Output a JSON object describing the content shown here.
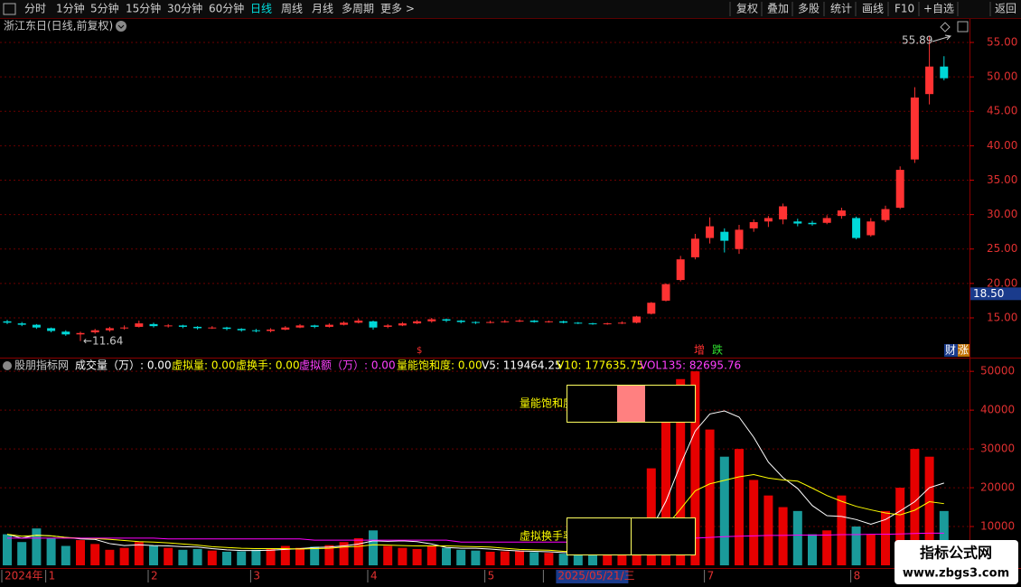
{
  "toolbar": {
    "left": [
      "分时",
      "1分钟",
      "5分钟",
      "15分钟",
      "30分钟",
      "60分钟",
      "日线",
      "周线",
      "月线",
      "多周期",
      "更多 >"
    ],
    "right": [
      "复权",
      "叠加",
      "多股",
      "统计",
      "画线",
      "F10",
      "+自选",
      "返回"
    ]
  },
  "chart_data": [
    {
      "type": "candlestick",
      "title": "浙江东日(日线,前复权)",
      "open": [
        14.5,
        14.2,
        14.0,
        13.5,
        13.0,
        12.6,
        12.9,
        13.2,
        13.5,
        13.7,
        14.1,
        13.8,
        13.9,
        13.7,
        13.5,
        13.6,
        13.4,
        13.2,
        13.1,
        13.3,
        13.6,
        13.9,
        13.7,
        14.0,
        14.3,
        14.5,
        13.7,
        13.9,
        14.2,
        14.5,
        14.8,
        14.6,
        14.4,
        14.3,
        14.4,
        14.5,
        14.6,
        14.4,
        14.5,
        14.3,
        14.2,
        14.1,
        14.2,
        14.3,
        15.6,
        17.5,
        20.5,
        23.8,
        26.6,
        27.5,
        25.0,
        28.0,
        29.0,
        29.3,
        29.0,
        28.8,
        28.8,
        29.8,
        29.5,
        27.0,
        29.2,
        31.0,
        38.0,
        47.5,
        51.5
      ],
      "high": [
        14.7,
        14.4,
        14.1,
        13.6,
        13.2,
        13.0,
        13.4,
        13.7,
        13.9,
        14.6,
        14.3,
        14.1,
        14.0,
        13.8,
        13.8,
        13.7,
        13.5,
        13.4,
        13.5,
        13.8,
        14.1,
        14.0,
        14.2,
        14.5,
        14.9,
        14.6,
        14.1,
        14.4,
        14.7,
        15.0,
        14.9,
        14.7,
        14.5,
        14.6,
        14.7,
        14.8,
        14.7,
        14.6,
        14.6,
        14.4,
        14.3,
        14.3,
        14.5,
        15.3,
        17.3,
        20.0,
        24.0,
        27.2,
        29.6,
        28.0,
        28.5,
        29.3,
        29.8,
        31.6,
        29.4,
        29.1,
        29.9,
        31.0,
        29.7,
        29.5,
        31.3,
        37.0,
        48.5,
        55.89,
        53.0
      ],
      "low": [
        14.1,
        13.8,
        13.4,
        12.9,
        12.4,
        11.64,
        12.7,
        13.0,
        13.3,
        13.6,
        13.6,
        13.6,
        13.5,
        13.3,
        13.4,
        13.2,
        13.0,
        12.9,
        12.9,
        13.2,
        13.5,
        13.5,
        13.6,
        13.9,
        14.2,
        13.3,
        13.5,
        13.8,
        14.1,
        14.3,
        14.4,
        14.2,
        14.1,
        14.2,
        14.3,
        14.4,
        14.3,
        14.3,
        14.2,
        14.1,
        14.0,
        14.0,
        14.1,
        14.2,
        15.5,
        17.4,
        20.3,
        23.5,
        25.8,
        24.5,
        24.3,
        27.5,
        28.2,
        28.6,
        28.3,
        28.4,
        28.6,
        29.4,
        26.4,
        26.8,
        28.9,
        30.8,
        37.5,
        46.0,
        49.5
      ],
      "close": [
        14.3,
        14.0,
        13.6,
        13.1,
        12.6,
        12.8,
        13.2,
        13.5,
        13.6,
        14.2,
        13.8,
        13.9,
        13.7,
        13.5,
        13.6,
        13.4,
        13.2,
        13.1,
        13.3,
        13.6,
        13.9,
        13.7,
        14.0,
        14.3,
        14.6,
        13.6,
        13.9,
        14.2,
        14.5,
        14.8,
        14.6,
        14.4,
        14.3,
        14.4,
        14.5,
        14.6,
        14.4,
        14.5,
        14.3,
        14.2,
        14.1,
        14.2,
        14.3,
        15.2,
        17.2,
        19.9,
        23.5,
        26.5,
        28.3,
        26.2,
        27.8,
        28.9,
        29.5,
        31.2,
        28.7,
        28.6,
        29.5,
        30.6,
        26.6,
        29.0,
        30.8,
        36.5,
        47.0,
        51.5,
        49.8
      ],
      "up_color": "#ff3232",
      "down_color": "#00d8d8",
      "ylim": [
        9.36,
        56.18
      ],
      "yticks": [
        {
          "value": 15,
          "label": "15.00"
        },
        {
          "value": 20,
          "label": "20.00"
        },
        {
          "value": 25,
          "label": "25.00"
        },
        {
          "value": 30,
          "label": "30.00"
        },
        {
          "value": 35,
          "label": "35.00"
        },
        {
          "value": 40,
          "label": "40.00"
        },
        {
          "value": 45,
          "label": "45.00"
        },
        {
          "value": 50,
          "label": "50.00"
        },
        {
          "value": 55,
          "label": "55.00"
        }
      ],
      "grid": true,
      "annotations": [
        "55.89",
        "←11.64"
      ],
      "cursor_price": {
        "value": 18.5,
        "label": "18.50"
      },
      "event_markers": [
        "$",
        "增",
        "跌",
        "财",
        "涨"
      ]
    },
    {
      "type": "bar",
      "header": [
        "股朋指标网",
        "成交量（万）: 0.00",
        "虚拟量: 0.00",
        "虚换手: 0.00",
        "虚拟额（万）: 0.00",
        "量能饱和度: 0.00",
        "V5: 119464.25",
        "V10: 177635.75",
        "VOL135: 82695.76"
      ],
      "categories": [
        "2024年",
        null,
        null,
        "1",
        null,
        null,
        null,
        null,
        null,
        null,
        "2",
        null,
        null,
        null,
        null,
        null,
        null,
        "3",
        null,
        null,
        null,
        null,
        null,
        null,
        null,
        "4",
        null,
        null,
        null,
        null,
        null,
        null,
        null,
        "5",
        null,
        null,
        null,
        "2025/05/21/三",
        null,
        null,
        null,
        null,
        null,
        null,
        null,
        null,
        null,
        null,
        "7",
        null,
        null,
        null,
        null,
        null,
        null,
        null,
        null,
        null,
        "8",
        null,
        null,
        null,
        null,
        null,
        null
      ],
      "values": [
        8000,
        6000,
        9500,
        7000,
        5000,
        6500,
        5500,
        4000,
        4500,
        6000,
        5000,
        4500,
        4000,
        4200,
        3800,
        3500,
        3600,
        4000,
        4200,
        5000,
        4500,
        4800,
        5200,
        6000,
        7000,
        9000,
        5000,
        4500,
        4200,
        5000,
        4500,
        4000,
        3800,
        3500,
        3600,
        3800,
        3400,
        3200,
        3000,
        3100,
        3300,
        3200,
        3500,
        12000,
        25000,
        38000,
        48000,
        50000,
        35000,
        28000,
        30000,
        22000,
        18000,
        15000,
        14000,
        8000,
        9000,
        18000,
        10000,
        8000,
        14000,
        20000,
        30000,
        28000,
        14000
      ],
      "up_color": "#e60000",
      "down_color": "#1a9a9a",
      "series": [
        {
          "color": "#ffffff",
          "values": [
            8000,
            7000,
            7800,
            7600,
            7200,
            6800,
            6700,
            5600,
            5100,
            5300,
            5100,
            5000,
            4800,
            4700,
            4300,
            4000,
            3800,
            3800,
            3900,
            4100,
            4300,
            4600,
            4700,
            5000,
            5500,
            6300,
            6200,
            6300,
            6100,
            5500,
            4600,
            4400,
            4400,
            4200,
            3900,
            3700,
            3600,
            3500,
            3300,
            3300,
            3200,
            3200,
            3200,
            4900,
            9400,
            16500,
            26000,
            34600,
            39000,
            39800,
            38200,
            33000,
            26600,
            22600,
            19800,
            15400,
            12800,
            12600,
            11800,
            10600,
            11800,
            14000,
            16400,
            20000,
            21200
          ]
        },
        {
          "color": "#ffff00",
          "values": [
            8000,
            7500,
            7700,
            7600,
            7200,
            7000,
            6900,
            6700,
            6400,
            6100,
            6000,
            5800,
            5500,
            5200,
            4800,
            4600,
            4400,
            4300,
            4300,
            4300,
            4200,
            4300,
            4400,
            4700,
            4900,
            5300,
            5200,
            5100,
            5000,
            5000,
            5000,
            4900,
            4800,
            4700,
            4400,
            4100,
            4000,
            3900,
            3600,
            3500,
            3400,
            3400,
            3300,
            4100,
            6300,
            10000,
            14500,
            19200,
            21000,
            21900,
            22800,
            23400,
            22500,
            22000,
            21700,
            19900,
            18000,
            16500,
            15200,
            14300,
            13500,
            13000,
            14200,
            16400,
            15900
          ]
        },
        {
          "color": "#ff00ff",
          "values": [
            7000,
            7000,
            7000,
            7000,
            7000,
            7000,
            7000,
            7000,
            7000,
            7000,
            7000,
            6800,
            6800,
            6800,
            6800,
            6800,
            6800,
            6800,
            6800,
            6800,
            6800,
            6500,
            6500,
            6500,
            6500,
            6500,
            6500,
            6500,
            6500,
            6500,
            6500,
            6000,
            6000,
            6000,
            6000,
            6000,
            6000,
            6000,
            6000,
            6000,
            6000,
            6000,
            6000,
            6100,
            6200,
            6400,
            6700,
            7000,
            7200,
            7400,
            7500,
            7600,
            7700,
            7700,
            7800,
            7800,
            7800,
            7900,
            7900,
            8000,
            8000,
            8100,
            8200,
            8300,
            8300
          ]
        }
      ],
      "ylim": [
        0,
        52600
      ],
      "yticks": [
        10000,
        20000,
        30000,
        40000,
        50000
      ],
      "grid": true,
      "overlay_labels": [
        "量能饱和度",
        "虚拟换手率"
      ]
    }
  ],
  "watermark": {
    "title": "指标公式网",
    "url": "www.zbgs3.com"
  }
}
